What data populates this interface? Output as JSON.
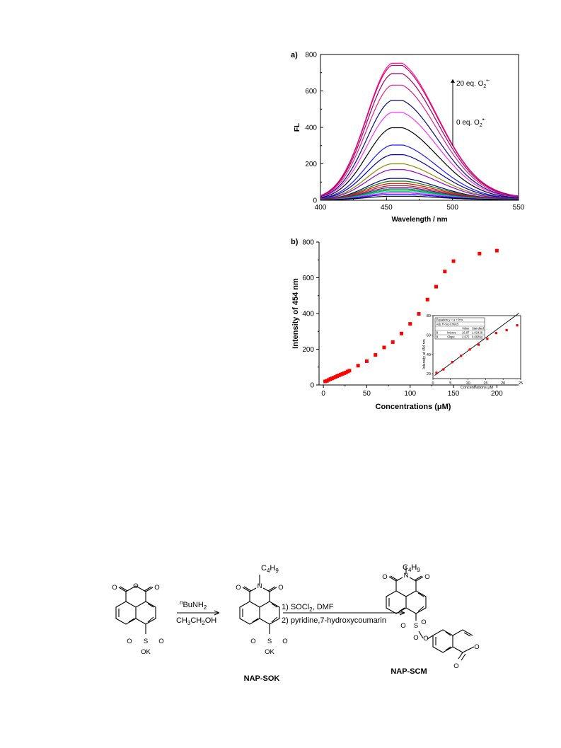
{
  "chart_data": [
    {
      "type": "line",
      "panel_label": "a)",
      "xlabel": "Wavelength / nm",
      "ylabel": "FL",
      "xlim": [
        400,
        550
      ],
      "ylim": [
        0,
        800
      ],
      "x_ticks": [
        400,
        450,
        500,
        550
      ],
      "y_ticks": [
        0,
        200,
        400,
        600,
        800
      ],
      "annotation_top": "20 eq. O",
      "annotation_bottom": "0 eq. O",
      "annotation_sub": "2",
      "annotation_sup": "•-",
      "peak_wavelength": 456,
      "series": [
        {
          "peak": 752,
          "color": "#ff1493"
        },
        {
          "peak": 740,
          "color": "#d2006e"
        },
        {
          "peak": 695,
          "color": "#a0006a"
        },
        {
          "peak": 632,
          "color": "#e0218a"
        },
        {
          "peak": 548,
          "color": "#0a0a80"
        },
        {
          "peak": 482,
          "color": "#ff33ff"
        },
        {
          "peak": 398,
          "color": "#000000"
        },
        {
          "peak": 303,
          "color": "#1a1aff"
        },
        {
          "peak": 250,
          "color": "#0000aa"
        },
        {
          "peak": 200,
          "color": "#8b8b00"
        },
        {
          "peak": 168,
          "color": "#9400d3"
        },
        {
          "peak": 120,
          "color": "#00008b"
        },
        {
          "peak": 105,
          "color": "#008000"
        },
        {
          "peak": 92,
          "color": "#ff0000"
        },
        {
          "peak": 80,
          "color": "#a52a2a"
        },
        {
          "peak": 70,
          "color": "#800080"
        },
        {
          "peak": 62,
          "color": "#008080"
        },
        {
          "peak": 55,
          "color": "#00aa00"
        },
        {
          "peak": 48,
          "color": "#00ced1"
        },
        {
          "peak": 40,
          "color": "#ff00ff"
        },
        {
          "peak": 32,
          "color": "#0000ff"
        },
        {
          "peak": 22,
          "color": "#000000"
        }
      ]
    },
    {
      "type": "scatter",
      "panel_label": "b)",
      "xlabel": "Concentrations (μM)",
      "ylabel": "Intensity of 454 nm",
      "xlim": [
        -5,
        225
      ],
      "ylim": [
        0,
        800
      ],
      "x_ticks": [
        0,
        50,
        100,
        150,
        200
      ],
      "y_ticks": [
        0,
        200,
        400,
        600,
        800
      ],
      "color": "#ff0000",
      "x": [
        2,
        4,
        6,
        8,
        10,
        12,
        14,
        16,
        18,
        20,
        22,
        24,
        26,
        28,
        30,
        40,
        50,
        60,
        70,
        80,
        90,
        100,
        110,
        120,
        130,
        140,
        150,
        180,
        200
      ],
      "y": [
        20,
        23,
        28,
        33,
        37,
        41,
        45,
        50,
        54,
        58,
        62,
        66,
        70,
        75,
        80,
        108,
        133,
        168,
        210,
        240,
        288,
        342,
        398,
        478,
        550,
        635,
        693,
        735,
        752
      ],
      "inset": {
        "type": "scatter",
        "xlabel": "Concentrations μM",
        "ylabel": "Intensity at 454 nm",
        "xlim": [
          0,
          25
        ],
        "ylim": [
          15,
          80
        ],
        "x_ticks": [
          0,
          5,
          10,
          15,
          20,
          25
        ],
        "y_ticks": [
          20,
          40,
          60,
          80
        ],
        "x": [
          1,
          3,
          5.5,
          8,
          10.5,
          13,
          15.5,
          18,
          21,
          24
        ],
        "y": [
          21,
          24.5,
          32,
          38.5,
          45,
          50,
          56,
          62,
          65,
          70
        ],
        "fit": {
          "intercept": 16.97,
          "slope": 2.672
        },
        "table": {
          "equation": "Equation   y = a + b*x",
          "adj_r": "Adj. R-Sq   0.9915",
          "head_value": "Value",
          "head_std": "Standard",
          "row1_name": "B",
          "row1_param": "Interce",
          "row1_value": "16.97",
          "row1_std": "1.02428",
          "row2_name": "B",
          "row2_param": "Slope",
          "row2_value": "2.672",
          "row2_std": "0.08394"
        }
      }
    }
  ],
  "scheme": {
    "reagent_top_prefix": "n",
    "reagent_top": "BuNH",
    "reagent_top_sub": "2",
    "reagent_bottom": "CH",
    "reagent_bottom_sub1": "3",
    "reagent_bottom_mid": "CH",
    "reagent_bottom_sub2": "2",
    "reagent_bottom_end": "OH",
    "step1": "1) SOCl",
    "step1_sub": "2",
    "step1_end": ", DMF",
    "step2": "2) pyridine,7-hydroxycoumarin",
    "compound2": "NAP-SOK",
    "compound3": "NAP-SCM",
    "butyl_main": "C",
    "butyl_sub1": "4",
    "butyl_mid": "H",
    "butyl_sub2": "9",
    "atom_o": "O",
    "atom_n": "N",
    "atom_s": "S",
    "atom_ok": "OK"
  }
}
